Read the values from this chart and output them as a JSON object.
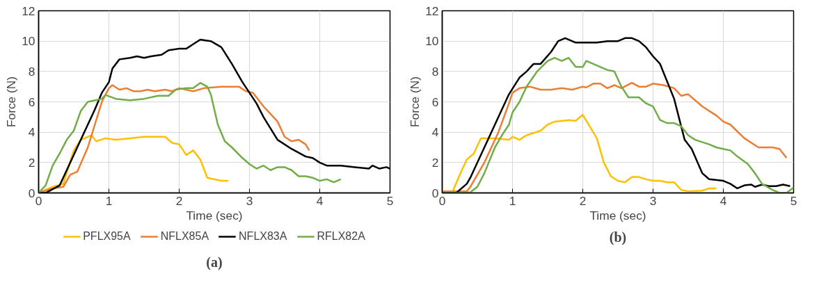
{
  "chart_data": [
    {
      "type": "line",
      "title": "(a)",
      "xlabel": "Time (sec)",
      "ylabel": "Force (N)",
      "xlim": [
        0,
        5
      ],
      "ylim": [
        0,
        12
      ],
      "xticks": [
        0,
        1,
        2,
        3,
        4,
        5
      ],
      "yticks": [
        0,
        2,
        4,
        6,
        8,
        10,
        12
      ],
      "grid": true,
      "legend": "bottom",
      "line_style": "solid",
      "marker": "none",
      "series": [
        {
          "name": "PFLX95A",
          "color": "#ffc000",
          "x": [
            0,
            0.2,
            0.35,
            0.5,
            0.6,
            0.75,
            0.82,
            0.95,
            1.1,
            1.3,
            1.5,
            1.8,
            1.9,
            2.0,
            2.1,
            2.2,
            2.3,
            2.4,
            2.6,
            2.7
          ],
          "values": [
            0,
            0.4,
            0.6,
            2.8,
            3.5,
            3.8,
            3.4,
            3.6,
            3.5,
            3.6,
            3.7,
            3.7,
            3.3,
            3.2,
            2.5,
            2.8,
            2.2,
            1.0,
            0.8,
            0.8
          ]
        },
        {
          "name": "NFLX85A",
          "color": "#ed7d31",
          "x": [
            0,
            0.2,
            0.35,
            0.45,
            0.55,
            0.7,
            0.8,
            0.9,
            1.0,
            1.05,
            1.15,
            1.25,
            1.35,
            1.45,
            1.55,
            1.65,
            1.8,
            1.9,
            2.0,
            2.2,
            2.35,
            2.6,
            2.85,
            2.95,
            3.05,
            3.2,
            3.3,
            3.4,
            3.5,
            3.6,
            3.7,
            3.8,
            3.85
          ],
          "values": [
            0,
            0.3,
            0.4,
            1.2,
            1.4,
            3.0,
            4.5,
            6.0,
            6.9,
            7.1,
            6.8,
            6.9,
            6.7,
            6.7,
            6.8,
            6.7,
            6.8,
            6.7,
            6.9,
            6.7,
            6.9,
            7.0,
            7.0,
            6.7,
            6.6,
            5.7,
            5.2,
            4.7,
            3.7,
            3.4,
            3.5,
            3.2,
            2.8
          ]
        },
        {
          "name": "NFLX83A",
          "color": "#000000",
          "x": [
            0,
            0.1,
            0.3,
            0.4,
            0.6,
            0.8,
            0.9,
            1.0,
            1.05,
            1.15,
            1.3,
            1.4,
            1.5,
            1.6,
            1.75,
            1.85,
            2.0,
            2.1,
            2.2,
            2.3,
            2.45,
            2.6,
            2.75,
            2.9,
            3.0,
            3.1,
            3.2,
            3.4,
            3.6,
            3.8,
            3.9,
            4.0,
            4.1,
            4.3,
            4.5,
            4.7,
            4.75,
            4.85,
            4.95,
            5.0
          ],
          "values": [
            0,
            0,
            0.5,
            1.5,
            3.5,
            5.5,
            6.6,
            7.3,
            8.2,
            8.8,
            8.9,
            9.0,
            8.9,
            9.0,
            9.1,
            9.4,
            9.5,
            9.5,
            9.8,
            10.1,
            10.0,
            9.6,
            8.5,
            7.3,
            6.6,
            5.9,
            5.0,
            3.5,
            2.9,
            2.4,
            2.3,
            2.0,
            1.8,
            1.8,
            1.7,
            1.6,
            1.8,
            1.6,
            1.7,
            1.6
          ]
        },
        {
          "name": "RFLX82A",
          "color": "#70ad47",
          "x": [
            0,
            0.1,
            0.2,
            0.3,
            0.4,
            0.5,
            0.6,
            0.7,
            0.9,
            0.95,
            1.1,
            1.3,
            1.5,
            1.7,
            1.85,
            1.95,
            2.1,
            2.2,
            2.3,
            2.4,
            2.45,
            2.55,
            2.65,
            2.75,
            2.9,
            3.0,
            3.1,
            3.2,
            3.3,
            3.4,
            3.5,
            3.6,
            3.7,
            3.8,
            3.9,
            4.0,
            4.1,
            4.2,
            4.3
          ],
          "values": [
            0,
            0.5,
            1.8,
            2.6,
            3.5,
            4.1,
            5.4,
            6.0,
            6.2,
            6.45,
            6.2,
            6.1,
            6.2,
            6.4,
            6.4,
            6.8,
            6.9,
            6.9,
            7.25,
            7.0,
            6.5,
            4.5,
            3.4,
            3.0,
            2.3,
            1.9,
            1.6,
            1.8,
            1.5,
            1.7,
            1.7,
            1.5,
            1.1,
            1.1,
            1.0,
            0.8,
            0.9,
            0.7,
            0.9
          ]
        }
      ]
    },
    {
      "type": "line",
      "title": "(b)",
      "xlabel": "Time (sec)",
      "ylabel": "Force (N)",
      "xlim": [
        0,
        5
      ],
      "ylim": [
        0,
        12
      ],
      "xticks": [
        0,
        1,
        2,
        3,
        4,
        5
      ],
      "yticks": [
        0,
        2,
        4,
        6,
        8,
        10,
        12
      ],
      "grid": true,
      "line_style": "solid",
      "marker": "none",
      "series": [
        {
          "color": "#ffc000",
          "x": [
            0,
            0.15,
            0.25,
            0.35,
            0.45,
            0.55,
            0.75,
            0.95,
            1.0,
            1.1,
            1.2,
            1.4,
            1.5,
            1.6,
            1.8,
            1.9,
            2.0,
            2.2,
            2.3,
            2.4,
            2.5,
            2.6,
            2.7,
            2.8,
            2.9,
            3.0,
            3.1,
            3.2,
            3.3,
            3.4,
            3.5,
            3.7,
            3.8,
            3.9
          ],
          "values": [
            0,
            0.1,
            1.2,
            2.2,
            2.6,
            3.6,
            3.6,
            3.5,
            3.7,
            3.5,
            3.8,
            4.1,
            4.5,
            4.7,
            4.8,
            4.75,
            5.15,
            3.6,
            2.0,
            1.1,
            0.8,
            0.7,
            1.05,
            1.05,
            0.9,
            0.8,
            0.8,
            0.7,
            0.7,
            0.2,
            0.1,
            0.15,
            0.3,
            0.3
          ]
        },
        {
          "color": "#ed7d31",
          "x": [
            0,
            0.2,
            0.35,
            0.4,
            0.6,
            0.8,
            0.95,
            1.0,
            1.1,
            1.25,
            1.4,
            1.55,
            1.7,
            1.85,
            2.0,
            2.05,
            2.15,
            2.25,
            2.35,
            2.45,
            2.55,
            2.7,
            2.8,
            2.9,
            3.0,
            3.15,
            3.3,
            3.4,
            3.5,
            3.7,
            3.9,
            4.0,
            4.1,
            4.3,
            4.5,
            4.7,
            4.8,
            4.9
          ],
          "values": [
            0.1,
            0.1,
            0.1,
            0.4,
            2.0,
            4.0,
            5.9,
            6.6,
            6.9,
            7.0,
            6.8,
            6.8,
            6.9,
            6.8,
            7.0,
            6.95,
            7.2,
            7.2,
            6.9,
            7.1,
            6.9,
            7.25,
            7.0,
            7.0,
            7.2,
            7.1,
            6.9,
            6.4,
            6.5,
            5.7,
            5.1,
            4.7,
            4.5,
            3.6,
            3.0,
            3.0,
            2.9,
            2.3
          ]
        },
        {
          "color": "#000000",
          "x": [
            0,
            0.2,
            0.35,
            0.4,
            0.6,
            0.8,
            0.95,
            1.1,
            1.2,
            1.3,
            1.4,
            1.55,
            1.65,
            1.75,
            1.9,
            2.0,
            2.2,
            2.35,
            2.5,
            2.6,
            2.7,
            2.8,
            2.9,
            3.0,
            3.1,
            3.3,
            3.45,
            3.55,
            3.7,
            3.8,
            4.0,
            4.1,
            4.2,
            4.3,
            4.4,
            4.45,
            4.55,
            4.65,
            4.75,
            4.85,
            4.95
          ],
          "values": [
            0,
            0,
            0.6,
            1.0,
            3.0,
            5.0,
            6.5,
            7.6,
            8.0,
            8.5,
            8.5,
            9.3,
            10.0,
            10.2,
            9.9,
            9.9,
            9.9,
            10.0,
            10.0,
            10.2,
            10.2,
            10.0,
            9.6,
            9.0,
            8.5,
            6.2,
            3.5,
            2.9,
            1.3,
            0.9,
            0.8,
            0.6,
            0.3,
            0.5,
            0.55,
            0.4,
            0.55,
            0.45,
            0.45,
            0.55,
            0.45
          ]
        },
        {
          "color": "#70ad47",
          "x": [
            0,
            0.3,
            0.4,
            0.5,
            0.6,
            0.75,
            0.85,
            0.95,
            1.0,
            1.1,
            1.2,
            1.35,
            1.5,
            1.6,
            1.7,
            1.8,
            1.9,
            2.0,
            2.05,
            2.2,
            2.35,
            2.45,
            2.55,
            2.65,
            2.8,
            2.9,
            3.0,
            3.1,
            3.2,
            3.3,
            3.4,
            3.5,
            3.6,
            3.8,
            3.9,
            4.0,
            4.1,
            4.2,
            4.35,
            4.45,
            4.55,
            4.7,
            4.8,
            4.9,
            5.0
          ],
          "values": [
            0,
            0,
            0.05,
            0.4,
            1.3,
            3.0,
            3.8,
            4.5,
            5.3,
            6.0,
            7.0,
            8.0,
            8.7,
            8.9,
            8.7,
            8.9,
            8.3,
            8.3,
            8.7,
            8.4,
            8.1,
            8.0,
            7.0,
            6.3,
            6.3,
            5.9,
            5.7,
            4.8,
            4.6,
            4.6,
            4.4,
            3.8,
            3.5,
            3.2,
            3.0,
            2.9,
            2.8,
            2.4,
            1.9,
            1.3,
            0.6,
            0.2,
            0.0,
            0.0,
            0.35
          ]
        }
      ]
    }
  ]
}
